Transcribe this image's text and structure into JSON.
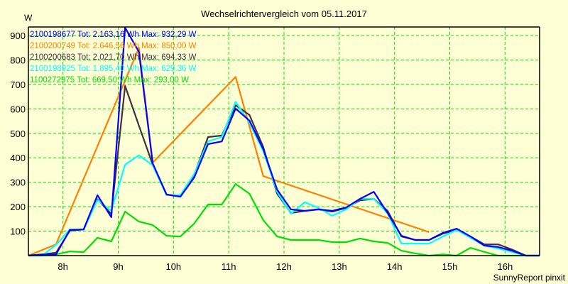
{
  "chart_data": {
    "type": "line",
    "title": "Wechselrichtervergleich vom 05.11.2017",
    "ylabel": "W",
    "xlabel": "",
    "footer": "SunnyReport pinxit",
    "xlim": [
      7.375,
      16.625
    ],
    "ylim": [
      0,
      935
    ],
    "grid": true,
    "legend_placement": "top-left",
    "x_ticks": [
      8,
      9,
      10,
      11,
      12,
      13,
      14,
      15,
      16
    ],
    "x_tick_labels": [
      "8h",
      "9h",
      "10h",
      "11h",
      "12h",
      "13h",
      "14h",
      "15h",
      "16h"
    ],
    "y_ticks": [
      100,
      200,
      300,
      400,
      500,
      600,
      700,
      800,
      900
    ],
    "y_tick_labels": [
      "100",
      "200",
      "300",
      "400",
      "500",
      "600",
      "700",
      "800",
      "900"
    ],
    "x_start": 7.375,
    "x_step": 0.25,
    "series": [
      {
        "name": "2100198677",
        "legend": "2100198677 Tot: 2.163,16 Wh Max: 932,29 W",
        "color": "#0000FF",
        "values": [
          0,
          5,
          5,
          105,
          107,
          247,
          157,
          932,
          833,
          377,
          250,
          241,
          319,
          456,
          467,
          601,
          552,
          435,
          270,
          189,
          183,
          189,
          183,
          197,
          232,
          261,
          174,
          81,
          64,
          64,
          93,
          110,
          78,
          41,
          35,
          20,
          0,
          0
        ]
      },
      {
        "name": "2100200749",
        "legend": "2100200749 Tot: 2.646,56 Wh Max: 850,00 W",
        "color": "#FF8000",
        "points": [
          [
            7.375,
            0
          ],
          [
            7.875,
            46
          ],
          [
            9.375,
            850
          ],
          [
            9.625,
            380
          ],
          [
            11.125,
            731
          ],
          [
            11.625,
            325
          ],
          [
            14.625,
            96
          ]
        ]
      },
      {
        "name": "2100200683",
        "legend": "2100200683 Tot: 2.021,70 Wh Max: 694,33 W",
        "color": "#403040",
        "values": [
          0,
          5,
          12,
          102,
          107,
          230,
          170,
          694,
          531,
          372,
          250,
          241,
          330,
          485,
          491,
          615,
          575,
          444,
          253,
          174,
          183,
          189,
          180,
          195,
          226,
          232,
          183,
          78,
          64,
          64,
          90,
          105,
          78,
          46,
          46,
          25,
          0,
          0
        ]
      },
      {
        "name": "2100198925",
        "legend": "2100198925 Tot: 1.895,40 Wh Max: 629,36 W",
        "color": "#00FFFF",
        "values": [
          0,
          0,
          44,
          107,
          107,
          227,
          183,
          372,
          410,
          369,
          247,
          247,
          334,
          467,
          485,
          629,
          543,
          427,
          261,
          171,
          218,
          195,
          163,
          189,
          232,
          232,
          174,
          49,
          49,
          49,
          78,
          105,
          73,
          41,
          29,
          15,
          0,
          0
        ]
      },
      {
        "name": "1100272975",
        "legend": "1100272975 Tot: 669,50 Wh Max: 293,00 W",
        "color": "#00E000",
        "values": [
          0,
          0,
          5,
          17,
          14,
          73,
          58,
          180,
          139,
          125,
          81,
          78,
          131,
          209,
          209,
          293,
          253,
          145,
          78,
          64,
          64,
          64,
          55,
          55,
          70,
          58,
          52,
          20,
          9,
          0,
          5,
          0,
          32,
          15,
          0,
          0,
          0,
          0
        ]
      }
    ]
  }
}
